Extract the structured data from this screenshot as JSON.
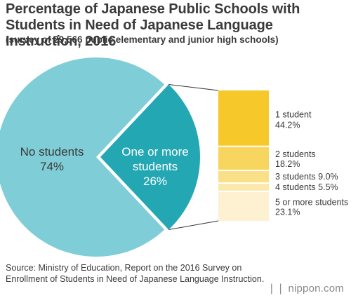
{
  "header": {
    "title": "Percentage of Japanese Public Schools with Students in Need of Japanese Language Instruction, 2016",
    "subtitle": "(survey of 29,566 public elementary and junior high schools)"
  },
  "footer": {
    "source": "Source: Ministry of Education, Report on the 2016 Survey on Enrollment of Students in Need of Japanese Language Instruction.",
    "logo": "nippon.com"
  },
  "colors": {
    "pie_main": "#7fcdd6",
    "pie_highlight": "#22a7b3",
    "stack": [
      "#f6c82a",
      "#f8d55e",
      "#f9df86",
      "#fbe8ab",
      "#fdf1d2"
    ],
    "text_dark": "#3a3a3a",
    "text_light": "#ffffff"
  },
  "chart_data": {
    "type": "pie",
    "slices": [
      {
        "label": "No students",
        "value": 74,
        "value_label": "74%"
      },
      {
        "label": "One or more students",
        "value": 26,
        "value_label": "26%"
      }
    ],
    "breakdown": {
      "of": "One or more students",
      "type": "stacked-bar",
      "segments": [
        {
          "label": "1 student",
          "value": 44.2,
          "value_label": "44.2%"
        },
        {
          "label": "2 students",
          "value": 18.2,
          "value_label": "18.2%"
        },
        {
          "label": "3 students",
          "value": 9.0,
          "value_label": "9.0%"
        },
        {
          "label": "4 students",
          "value": 5.5,
          "value_label": "5.5%"
        },
        {
          "label": "5 or more students",
          "value": 23.1,
          "value_label": "23.1%"
        }
      ]
    }
  }
}
